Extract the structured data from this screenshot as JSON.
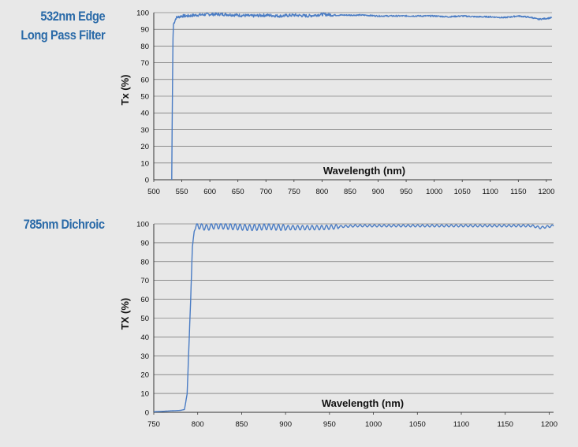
{
  "chart_data": [
    {
      "type": "line",
      "title_lines": [
        "532nm Edge",
        "Long Pass Filter"
      ],
      "xlabel": "Wavelength (nm)",
      "ylabel": "Tx (%)",
      "xlim": [
        500,
        1210
      ],
      "ylim": [
        0,
        100
      ],
      "x_ticks": [
        500,
        550,
        600,
        650,
        700,
        750,
        800,
        850,
        900,
        950,
        1000,
        1050,
        1100,
        1150,
        1200
      ],
      "y_ticks": [
        0,
        10,
        20,
        30,
        40,
        50,
        60,
        70,
        80,
        90,
        100
      ],
      "grid": "horizontal",
      "line_color": "#4a7cc4",
      "series": [
        {
          "x": [
            532,
            533,
            534,
            535,
            540,
            550,
            560,
            575,
            600,
            625,
            650,
            675,
            700,
            725,
            750,
            775,
            800,
            825,
            850,
            875,
            900,
            925,
            950,
            975,
            1000,
            1025,
            1050,
            1075,
            1100,
            1125,
            1150,
            1175,
            1185,
            1200,
            1210
          ],
          "y": [
            0,
            40,
            80,
            93,
            97,
            98,
            98,
            98.5,
            99,
            99,
            98.5,
            98,
            98.5,
            98,
            98.5,
            98,
            99,
            98.5,
            98.5,
            98.5,
            98,
            98,
            98,
            98,
            98,
            97.5,
            98,
            97.5,
            97.5,
            97,
            98,
            97,
            96,
            96.5,
            97
          ]
        }
      ]
    },
    {
      "type": "line",
      "title_lines": [
        "785nm Dichroic"
      ],
      "xlabel": "Wavelength (nm)",
      "ylabel": "TX (%)",
      "xlim": [
        750,
        1205
      ],
      "ylim": [
        0,
        100
      ],
      "x_ticks": [
        750,
        800,
        850,
        900,
        950,
        1000,
        1050,
        1100,
        1150,
        1200
      ],
      "y_ticks": [
        0,
        10,
        20,
        30,
        40,
        50,
        60,
        70,
        80,
        90,
        100
      ],
      "grid": "horizontal",
      "line_color": "#4a7cc4",
      "series": [
        {
          "x": [
            750,
            760,
            770,
            780,
            785,
            788,
            790,
            792,
            794,
            796,
            798,
            800,
            810,
            820,
            840,
            860,
            880,
            900,
            920,
            940,
            960,
            980,
            1000,
            1020,
            1040,
            1060,
            1080,
            1100,
            1120,
            1140,
            1160,
            1180,
            1190,
            1205
          ],
          "y": [
            0.3,
            0.5,
            0.8,
            1.0,
            1.5,
            10,
            35,
            60,
            88,
            96,
            98,
            99,
            98,
            99,
            98.5,
            98,
            98.5,
            98,
            98,
            98,
            98.5,
            99,
            99,
            99,
            99,
            99,
            99,
            99,
            99,
            99,
            99,
            99,
            98,
            99
          ]
        }
      ]
    }
  ]
}
